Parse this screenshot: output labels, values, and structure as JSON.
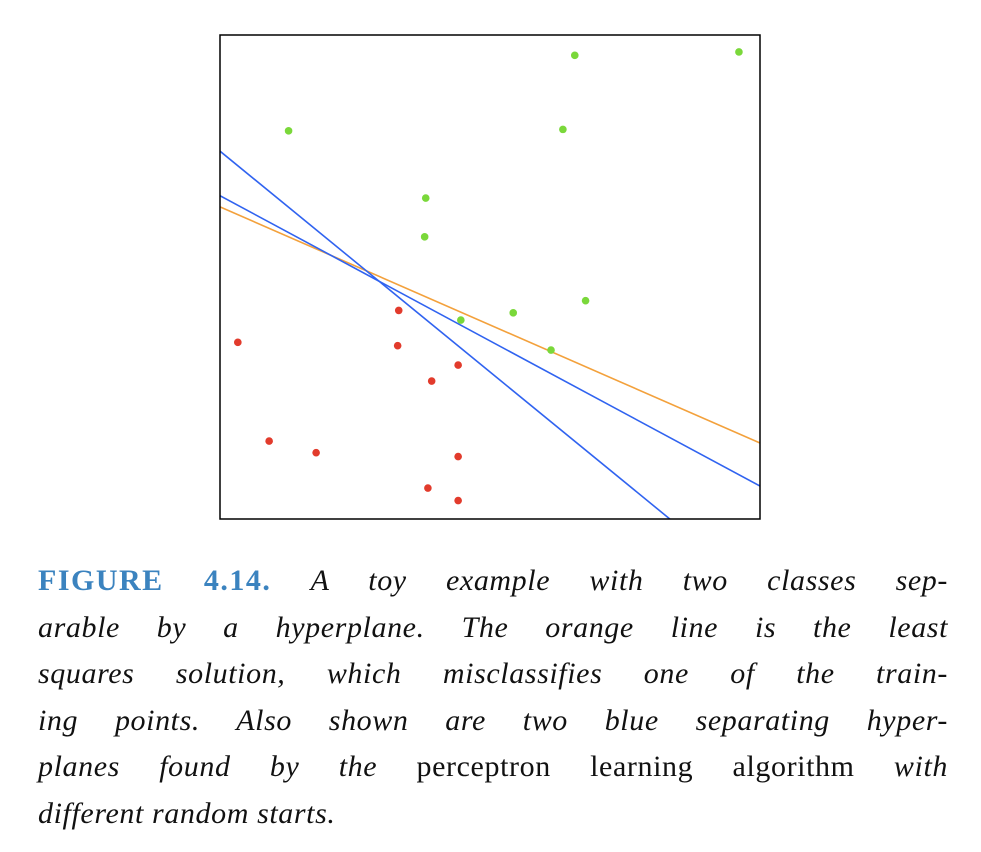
{
  "chart_data": {
    "type": "scatter",
    "title": "",
    "xlabel": "",
    "ylabel": "",
    "xlim": [
      0,
      1
    ],
    "ylim": [
      0,
      1
    ],
    "grid": false,
    "axes_ticks": false,
    "series": [
      {
        "color": "#7ad83a",
        "points": [
          [
            0.657,
            0.958
          ],
          [
            0.961,
            0.965
          ],
          [
            0.127,
            0.802
          ],
          [
            0.635,
            0.805
          ],
          [
            0.381,
            0.663
          ],
          [
            0.379,
            0.583
          ],
          [
            0.677,
            0.451
          ],
          [
            0.543,
            0.426
          ],
          [
            0.446,
            0.411
          ],
          [
            0.613,
            0.349
          ]
        ]
      },
      {
        "color": "#e23b2c",
        "points": [
          [
            0.331,
            0.431
          ],
          [
            0.033,
            0.365
          ],
          [
            0.329,
            0.358
          ],
          [
            0.441,
            0.318
          ],
          [
            0.392,
            0.285
          ],
          [
            0.091,
            0.161
          ],
          [
            0.178,
            0.137
          ],
          [
            0.441,
            0.129
          ],
          [
            0.385,
            0.064
          ],
          [
            0.441,
            0.038
          ]
        ]
      }
    ],
    "lines": [
      {
        "color": "#f3a13c",
        "from": [
          0,
          0.645
        ],
        "to": [
          1,
          0.157
        ]
      },
      {
        "color": "#3063f0",
        "from": [
          0,
          0.76
        ],
        "to": [
          0.833,
          0.0
        ]
      },
      {
        "color": "#3063f0",
        "from": [
          0,
          0.668
        ],
        "to": [
          1,
          0.068
        ]
      }
    ]
  },
  "caption": {
    "label": "FIGURE 4.14.",
    "line1": "A toy example with two classes sep-",
    "line2": "arable by a hyperplane.  The orange line is the least",
    "line3": "squares solution, which misclassifies one of the train-",
    "line4": "ing points.  Also shown are two blue separating hyper-",
    "line5_italic": "planes found by the",
    "line5_roman": "perceptron learning algorithm",
    "line5_italic_end": "with",
    "line6": "different random starts."
  }
}
